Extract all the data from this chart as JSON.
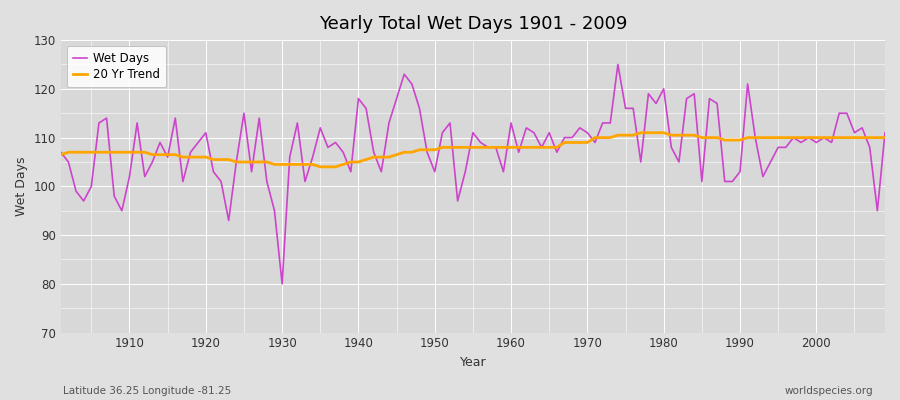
{
  "title": "Yearly Total Wet Days 1901 - 2009",
  "xlabel": "Year",
  "ylabel": "Wet Days",
  "ylim": [
    70,
    130
  ],
  "xlim": [
    1901,
    2009
  ],
  "yticks": [
    70,
    80,
    90,
    100,
    110,
    120,
    130
  ],
  "xticks": [
    1910,
    1920,
    1930,
    1940,
    1950,
    1960,
    1970,
    1980,
    1990,
    2000
  ],
  "wet_days_color": "#CC44CC",
  "trend_color": "#FFA500",
  "figure_bg_color": "#E0E0E0",
  "plot_bg_color": "#D8D8D8",
  "grid_color": "#FFFFFF",
  "subtitle_left": "Latitude 36.25 Longitude -81.25",
  "subtitle_right": "worldspecies.org",
  "legend_labels": [
    "Wet Days",
    "20 Yr Trend"
  ],
  "wet_days": {
    "1901": 107,
    "1902": 105,
    "1903": 99,
    "1904": 97,
    "1905": 100,
    "1906": 113,
    "1907": 114,
    "1908": 98,
    "1909": 95,
    "1910": 102,
    "1911": 113,
    "1912": 102,
    "1913": 105,
    "1914": 109,
    "1915": 106,
    "1916": 114,
    "1917": 101,
    "1918": 107,
    "1919": 109,
    "1920": 111,
    "1921": 103,
    "1922": 101,
    "1923": 93,
    "1924": 105,
    "1925": 115,
    "1926": 103,
    "1927": 114,
    "1928": 101,
    "1929": 95,
    "1930": 80,
    "1931": 106,
    "1932": 113,
    "1933": 101,
    "1934": 106,
    "1935": 112,
    "1936": 108,
    "1937": 109,
    "1938": 107,
    "1939": 103,
    "1940": 118,
    "1941": 116,
    "1942": 107,
    "1943": 103,
    "1944": 113,
    "1945": 118,
    "1946": 123,
    "1947": 121,
    "1948": 116,
    "1949": 107,
    "1950": 103,
    "1951": 111,
    "1952": 113,
    "1953": 97,
    "1954": 103,
    "1955": 111,
    "1956": 109,
    "1957": 108,
    "1958": 108,
    "1959": 103,
    "1960": 113,
    "1961": 107,
    "1962": 112,
    "1963": 111,
    "1964": 108,
    "1965": 111,
    "1966": 107,
    "1967": 110,
    "1968": 110,
    "1969": 112,
    "1970": 111,
    "1971": 109,
    "1972": 113,
    "1973": 113,
    "1974": 125,
    "1975": 116,
    "1976": 116,
    "1977": 105,
    "1978": 119,
    "1979": 117,
    "1980": 120,
    "1981": 108,
    "1982": 105,
    "1983": 118,
    "1984": 119,
    "1985": 101,
    "1986": 118,
    "1987": 117,
    "1988": 101,
    "1989": 101,
    "1990": 103,
    "1991": 121,
    "1992": 110,
    "1993": 102,
    "1994": 105,
    "1995": 108,
    "1996": 108,
    "1997": 110,
    "1998": 109,
    "1999": 110,
    "2000": 109,
    "2001": 110,
    "2002": 109,
    "2003": 115,
    "2004": 115,
    "2005": 111,
    "2006": 112,
    "2007": 108,
    "2008": 95,
    "2009": 111
  },
  "trend": {
    "1901": 106.5,
    "1902": 107.0,
    "1903": 107.0,
    "1904": 107.0,
    "1905": 107.0,
    "1906": 107.0,
    "1907": 107.0,
    "1908": 107.0,
    "1909": 107.0,
    "1910": 107.0,
    "1911": 107.0,
    "1912": 107.0,
    "1913": 106.5,
    "1914": 106.5,
    "1915": 106.5,
    "1916": 106.5,
    "1917": 106.0,
    "1918": 106.0,
    "1919": 106.0,
    "1920": 106.0,
    "1921": 105.5,
    "1922": 105.5,
    "1923": 105.5,
    "1924": 105.0,
    "1925": 105.0,
    "1926": 105.0,
    "1927": 105.0,
    "1928": 105.0,
    "1929": 104.5,
    "1930": 104.5,
    "1931": 104.5,
    "1932": 104.5,
    "1933": 104.5,
    "1934": 104.5,
    "1935": 104.0,
    "1936": 104.0,
    "1937": 104.0,
    "1938": 104.5,
    "1939": 105.0,
    "1940": 105.0,
    "1941": 105.5,
    "1942": 106.0,
    "1943": 106.0,
    "1944": 106.0,
    "1945": 106.5,
    "1946": 107.0,
    "1947": 107.0,
    "1948": 107.5,
    "1949": 107.5,
    "1950": 107.5,
    "1951": 108.0,
    "1952": 108.0,
    "1953": 108.0,
    "1954": 108.0,
    "1955": 108.0,
    "1956": 108.0,
    "1957": 108.0,
    "1958": 108.0,
    "1959": 108.0,
    "1960": 108.0,
    "1961": 108.0,
    "1962": 108.0,
    "1963": 108.0,
    "1964": 108.0,
    "1965": 108.0,
    "1966": 108.0,
    "1967": 109.0,
    "1968": 109.0,
    "1969": 109.0,
    "1970": 109.0,
    "1971": 110.0,
    "1972": 110.0,
    "1973": 110.0,
    "1974": 110.5,
    "1975": 110.5,
    "1976": 110.5,
    "1977": 111.0,
    "1978": 111.0,
    "1979": 111.0,
    "1980": 111.0,
    "1981": 110.5,
    "1982": 110.5,
    "1983": 110.5,
    "1984": 110.5,
    "1985": 110.0,
    "1986": 110.0,
    "1987": 110.0,
    "1988": 109.5,
    "1989": 109.5,
    "1990": 109.5,
    "1991": 110.0,
    "1992": 110.0,
    "1993": 110.0,
    "1994": 110.0,
    "1995": 110.0,
    "1996": 110.0,
    "1997": 110.0,
    "1998": 110.0,
    "1999": 110.0,
    "2000": 110.0,
    "2001": 110.0,
    "2002": 110.0,
    "2003": 110.0,
    "2004": 110.0,
    "2005": 110.0,
    "2006": 110.0,
    "2007": 110.0,
    "2008": 110.0,
    "2009": 110.0
  }
}
